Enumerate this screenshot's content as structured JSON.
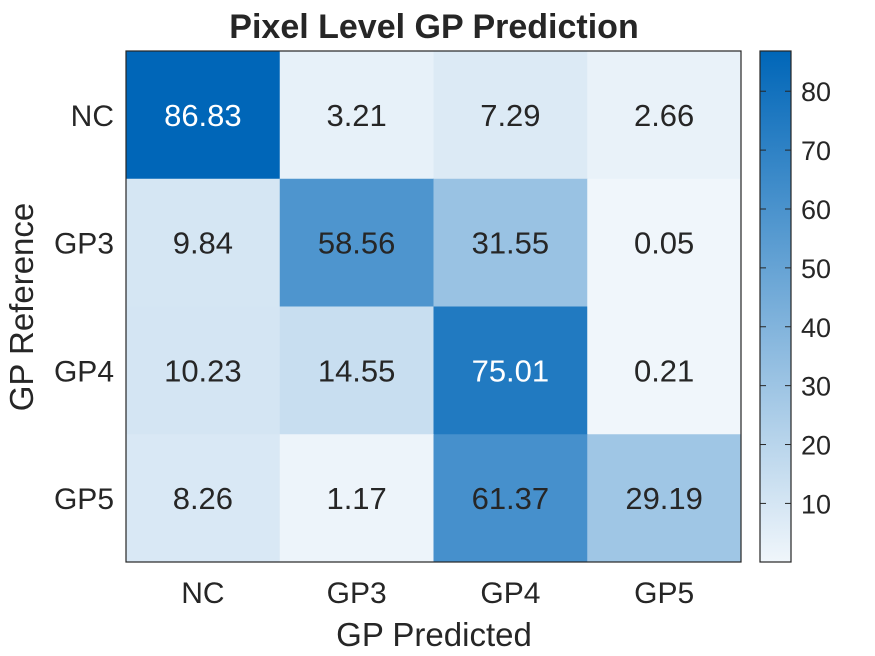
{
  "chart_data": {
    "type": "heatmap",
    "title": "Pixel Level GP Prediction",
    "xlabel": "GP Predicted",
    "ylabel": "GP Reference",
    "x_categories": [
      "NC",
      "GP3",
      "GP4",
      "GP5"
    ],
    "y_categories": [
      "NC",
      "GP3",
      "GP4",
      "GP5"
    ],
    "values": [
      [
        86.83,
        3.21,
        7.29,
        2.66
      ],
      [
        9.84,
        58.56,
        31.55,
        0.05
      ],
      [
        10.23,
        14.55,
        75.01,
        0.21
      ],
      [
        8.26,
        1.17,
        61.37,
        29.19
      ]
    ],
    "value_labels": [
      [
        "86.83",
        "3.21",
        "7.29",
        "2.66"
      ],
      [
        "9.84",
        "58.56",
        "31.55",
        "0.05"
      ],
      [
        "10.23",
        "14.55",
        "75.01",
        "0.21"
      ],
      [
        "8.26",
        "1.17",
        "61.37",
        "29.19"
      ]
    ],
    "colorbar": {
      "range": [
        0.05,
        86.83
      ],
      "ticks": [
        10,
        20,
        30,
        40,
        50,
        60,
        70,
        80
      ],
      "tick_labels": [
        "10",
        "20",
        "30",
        "40",
        "50",
        "60",
        "70",
        "80"
      ],
      "colormap": {
        "low": "#f0f6fb",
        "high": "#0066b8"
      },
      "placement": "right"
    },
    "text_color_dark": "#262626",
    "text_color_light": "#ffffff"
  }
}
